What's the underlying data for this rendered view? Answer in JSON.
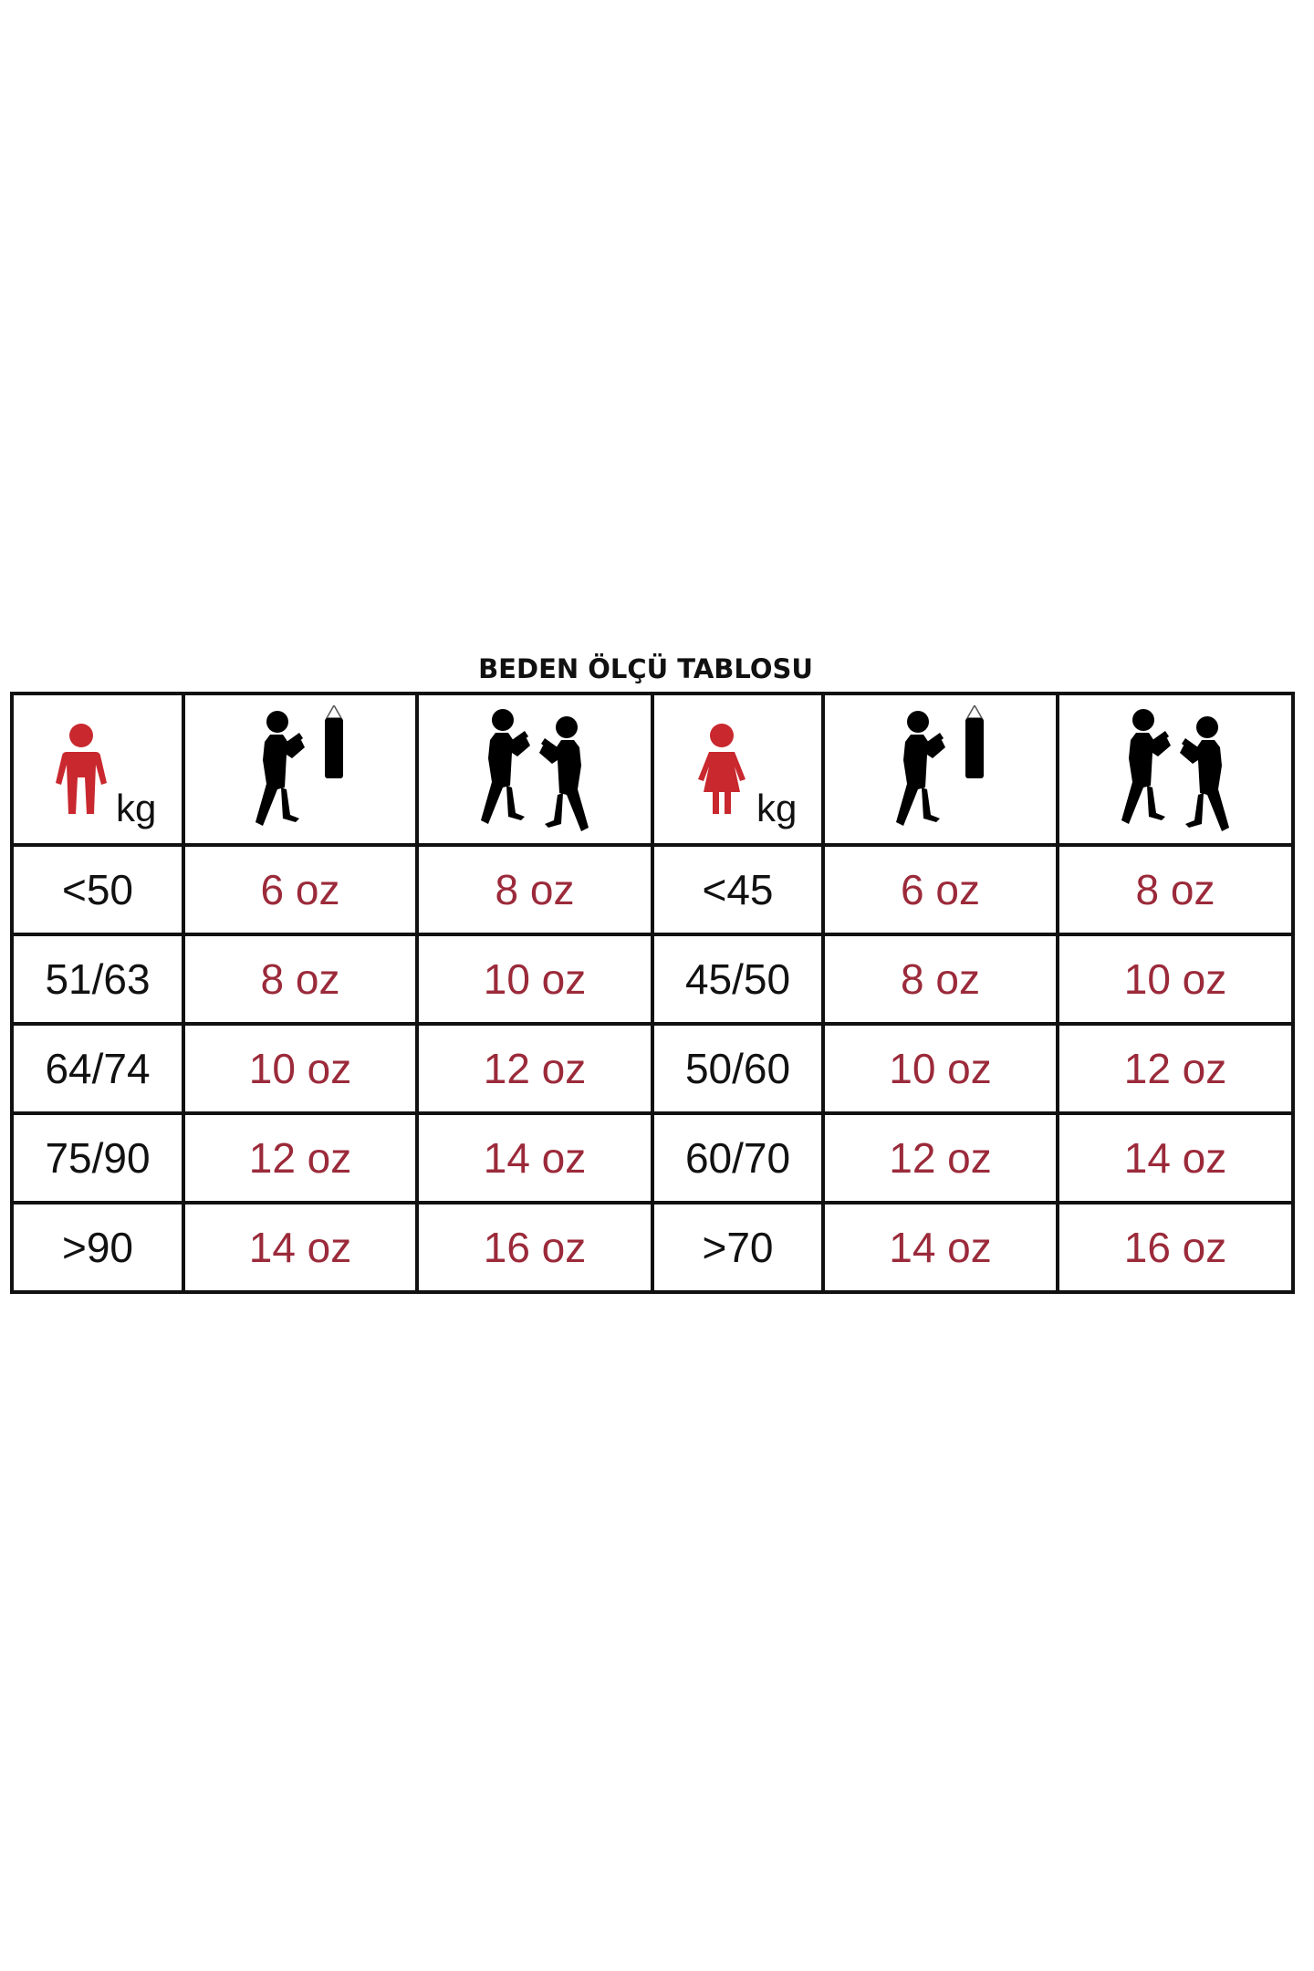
{
  "title": "BEDEN ÖLÇÜ TABLOSU",
  "colors": {
    "person_icon": "#c8282e",
    "oz_text": "#9b2a3a",
    "grid": "#111111"
  },
  "header": {
    "men": {
      "icon": "male-person-icon",
      "unit": "kg",
      "bag_icon": "boxer-punching-bag-icon",
      "sparring_icon": "boxers-sparring-icon"
    },
    "women": {
      "icon": "female-person-icon",
      "unit": "kg",
      "bag_icon": "boxer-punching-bag-icon",
      "sparring_icon": "boxers-sparring-icon"
    }
  },
  "rows": [
    {
      "men_kg": "<50",
      "men_bag": "6 oz",
      "men_spar": "8 oz",
      "women_kg": "<45",
      "women_bag": "6 oz",
      "women_spar": "8 oz"
    },
    {
      "men_kg": "51/63",
      "men_bag": "8 oz",
      "men_spar": "10 oz",
      "women_kg": "45/50",
      "women_bag": "8 oz",
      "women_spar": "10 oz"
    },
    {
      "men_kg": "64/74",
      "men_bag": "10 oz",
      "men_spar": "12 oz",
      "women_kg": "50/60",
      "women_bag": "10 oz",
      "women_spar": "12 oz"
    },
    {
      "men_kg": "75/90",
      "men_bag": "12 oz",
      "men_spar": "14 oz",
      "women_kg": "60/70",
      "women_bag": "12 oz",
      "women_spar": "14 oz"
    },
    {
      "men_kg": ">90",
      "men_bag": "14 oz",
      "men_spar": "16 oz",
      "women_kg": ">70",
      "women_bag": "14 oz",
      "women_spar": "16 oz"
    }
  ]
}
